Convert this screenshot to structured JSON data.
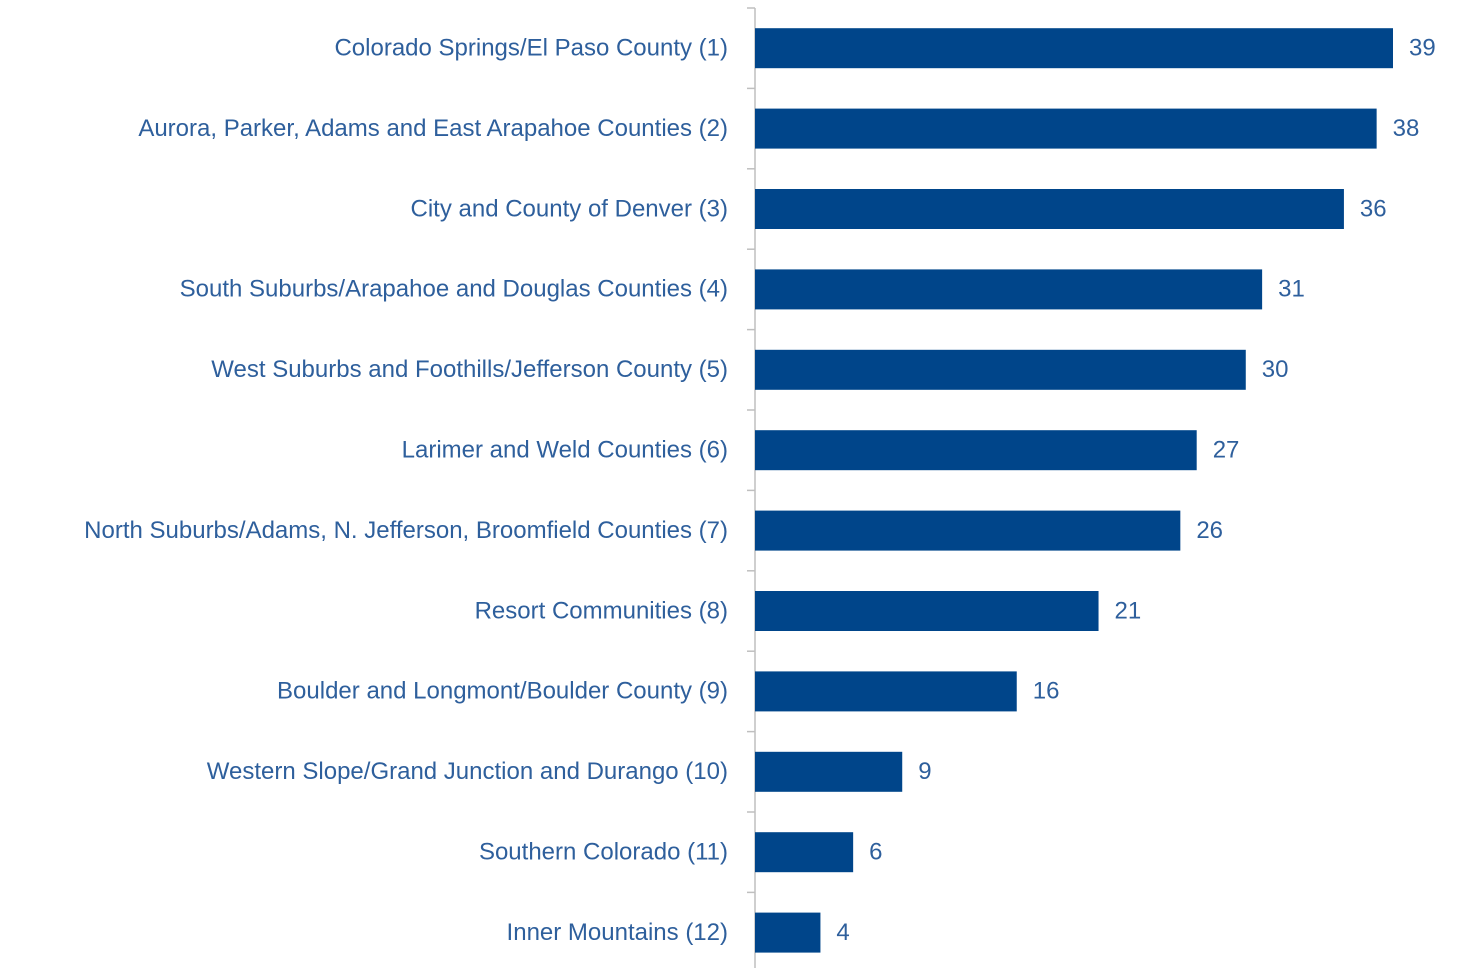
{
  "chart_data": {
    "type": "bar",
    "orientation": "horizontal",
    "categories": [
      "Colorado Springs/El Paso County (1)",
      "Aurora, Parker, Adams and East Arapahoe Counties (2)",
      "City and County of Denver (3)",
      "South Suburbs/Arapahoe and Douglas Counties (4)",
      "West Suburbs and Foothills/Jefferson County (5)",
      "Larimer and Weld Counties (6)",
      "North Suburbs/Adams, N. Jefferson, Broomfield Counties (7)",
      "Resort Communities (8)",
      "Boulder and Longmont/Boulder County (9)",
      "Western Slope/Grand Junction and Durango (10)",
      "Southern Colorado (11)",
      "Inner Mountains (12)"
    ],
    "values": [
      39,
      38,
      36,
      31,
      30,
      27,
      26,
      21,
      16,
      9,
      6,
      4
    ],
    "color": "#00458a"
  }
}
